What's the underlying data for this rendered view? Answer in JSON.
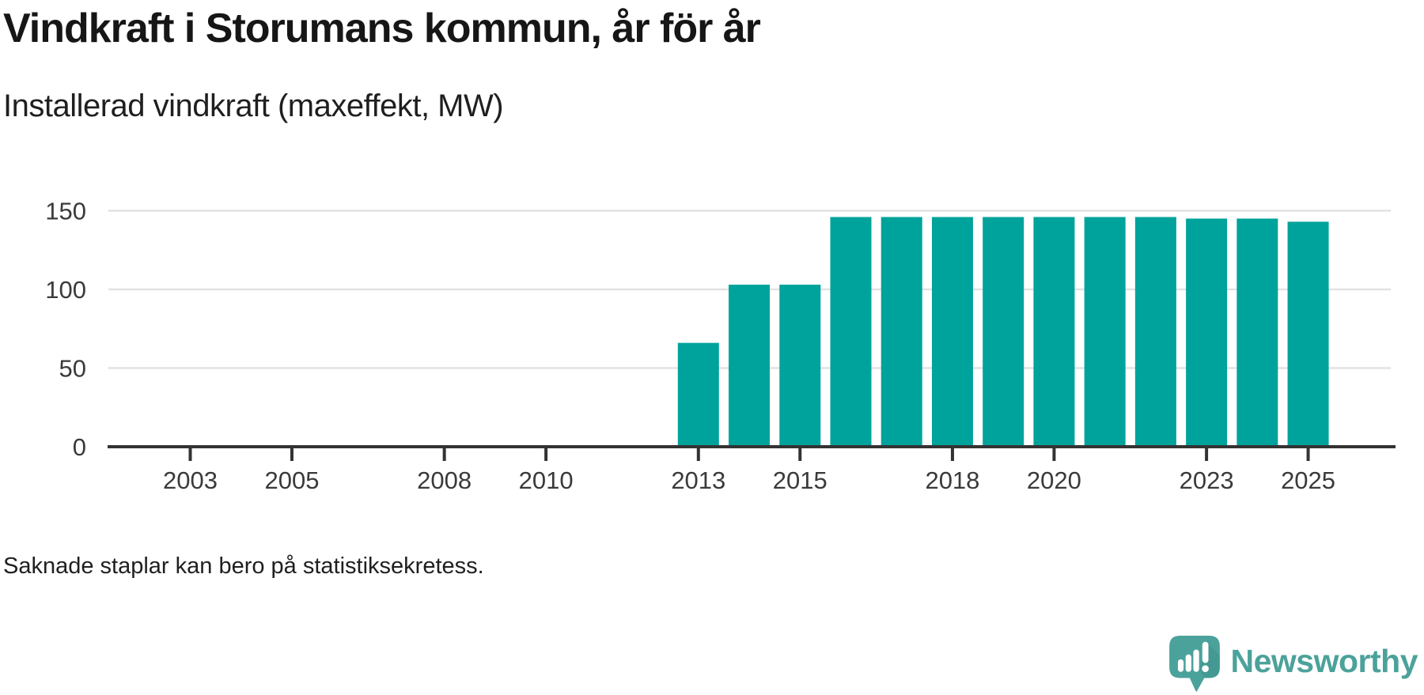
{
  "header": {
    "title": "Vindkraft i Storumans kommun, år för år",
    "subtitle": "Installerad vindkraft (maxeffekt, MW)"
  },
  "footer": {
    "note": "Saknade staplar kan bero på statistiksekretess."
  },
  "branding": {
    "name": "Newsworthy",
    "icon": "newsworthy-speech-bubble-bar-chart-icon"
  },
  "colors": {
    "bar": "#00a39b",
    "axis": "#333333",
    "grid": "#e2e2e2",
    "tick_text": "#3a3a3a",
    "title_text": "#161616",
    "brand": "#4ba29a",
    "brand_shadow": "#3f948d"
  },
  "chart_data": {
    "type": "bar",
    "title": "Vindkraft i Storumans kommun, år för år",
    "subtitle": "Installerad vindkraft (maxeffekt, MW)",
    "ylabel": "MW",
    "xlabel": "",
    "grid": true,
    "legend": false,
    "note": "Saknade staplar kan bero på statistiksekretess.",
    "x": [
      2002,
      2003,
      2004,
      2005,
      2006,
      2007,
      2008,
      2009,
      2010,
      2011,
      2012,
      2013,
      2014,
      2015,
      2016,
      2017,
      2018,
      2019,
      2020,
      2021,
      2022,
      2023,
      2024,
      2025
    ],
    "values": [
      null,
      null,
      null,
      null,
      null,
      null,
      null,
      null,
      null,
      null,
      null,
      66,
      103,
      103,
      146,
      146,
      146,
      146,
      146,
      146,
      146,
      145,
      145,
      143
    ],
    "x_tick_years": [
      2003,
      2005,
      2008,
      2010,
      2013,
      2015,
      2018,
      2020,
      2023,
      2025
    ],
    "y_ticks": [
      0,
      50,
      100,
      150
    ],
    "ylim": [
      0,
      150
    ]
  }
}
